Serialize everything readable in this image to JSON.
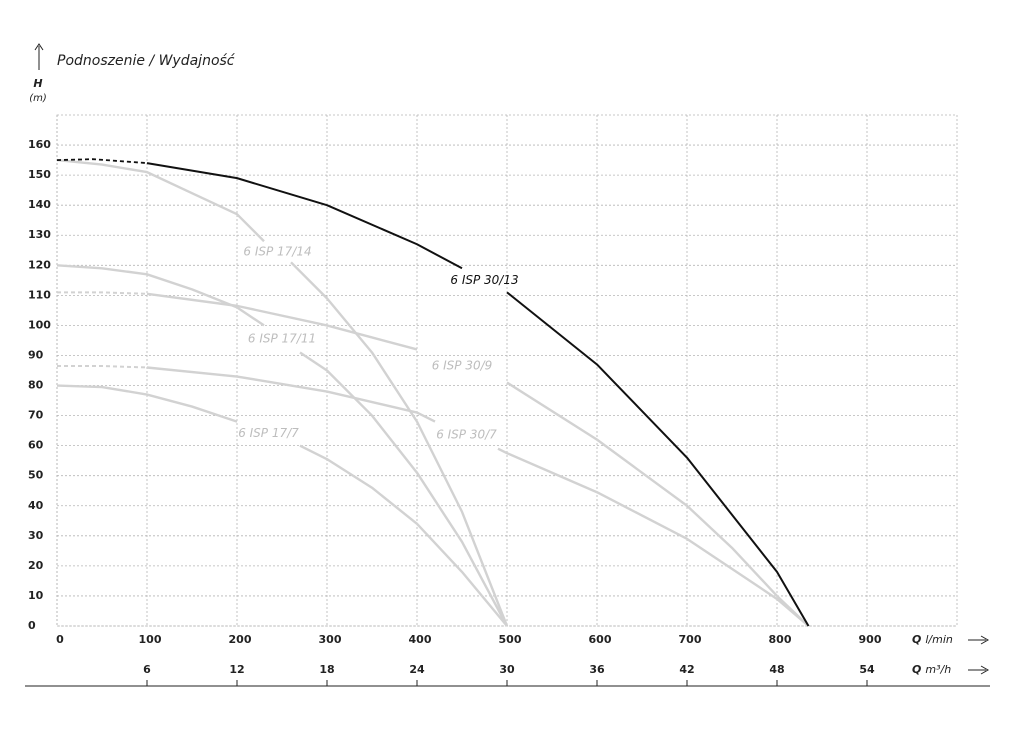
{
  "chart_data": {
    "type": "line",
    "title": "Podnoszenie / Wydajność",
    "ylabel": "H",
    "yunit": "(m)",
    "xlabel": {
      "symbol": "Q",
      "unit": "l/min"
    },
    "x2label": {
      "symbol": "Q",
      "unit": "m³/h"
    },
    "xlim": [
      0,
      1000
    ],
    "xticks": [
      0,
      100,
      200,
      300,
      400,
      500,
      600,
      700,
      800,
      900
    ],
    "x2lim": [
      0,
      60
    ],
    "x2ticks": [
      6,
      12,
      18,
      24,
      30,
      36,
      42,
      48,
      54
    ],
    "ylim": [
      0,
      170
    ],
    "yticks": [
      0,
      10,
      20,
      30,
      40,
      50,
      60,
      70,
      80,
      90,
      100,
      110,
      120,
      130,
      140,
      150,
      160
    ],
    "grid": true,
    "series": [
      {
        "name": "6 ISP 17/14",
        "color": "#d2d2d2",
        "x": [
          0,
          50,
          100,
          150,
          200,
          230,
          245,
          260,
          300,
          350,
          400,
          450,
          500
        ],
        "values": [
          155,
          153.5,
          151,
          144,
          137,
          128,
          null,
          121,
          109,
          91,
          68,
          38,
          0
        ]
      },
      {
        "name": "6 ISP 17/11",
        "color": "#d2d2d2",
        "x": [
          0,
          50,
          100,
          150,
          200,
          230,
          250,
          270,
          300,
          350,
          400,
          450,
          500
        ],
        "values": [
          120,
          119,
          117,
          112,
          106,
          100,
          null,
          91,
          85,
          70,
          51,
          28,
          0
        ]
      },
      {
        "name": "6 ISP 17/7",
        "color": "#d2d2d2",
        "x": [
          0,
          50,
          100,
          150,
          200,
          235,
          270,
          300,
          350,
          400,
          450,
          500
        ],
        "values": [
          80,
          79.5,
          77,
          73,
          68,
          null,
          60,
          55.5,
          46,
          34,
          18,
          0
        ]
      },
      {
        "name": "6 ISP 30/9",
        "color": "#d2d2d2",
        "lead_x": [
          0,
          50,
          100
        ],
        "lead_values": [
          111,
          111,
          110.5
        ],
        "x": [
          100,
          200,
          300,
          350,
          400,
          450,
          500,
          600,
          700,
          750,
          800,
          835
        ],
        "values": [
          110.5,
          106.5,
          100,
          96,
          92,
          null,
          81,
          62,
          40,
          26,
          10,
          0
        ]
      },
      {
        "name": "6 ISP 30/7",
        "color": "#d2d2d2",
        "lead_x": [
          0,
          50,
          100
        ],
        "lead_values": [
          86.5,
          86.5,
          86
        ],
        "x": [
          100,
          200,
          300,
          400,
          420,
          455,
          490,
          500,
          600,
          700,
          800,
          835
        ],
        "values": [
          86,
          83,
          78,
          71,
          68,
          null,
          59,
          57.5,
          44.5,
          29,
          9,
          0
        ]
      },
      {
        "name": "6 ISP 30/13",
        "color": "#111111",
        "lead_x": [
          0,
          40,
          100
        ],
        "lead_values": [
          155,
          155.3,
          154
        ],
        "x": [
          100,
          200,
          300,
          400,
          450,
          475,
          500,
          600,
          700,
          800,
          835
        ],
        "values": [
          154,
          149,
          140,
          127,
          119,
          null,
          111,
          87,
          56,
          18,
          0
        ]
      }
    ]
  }
}
